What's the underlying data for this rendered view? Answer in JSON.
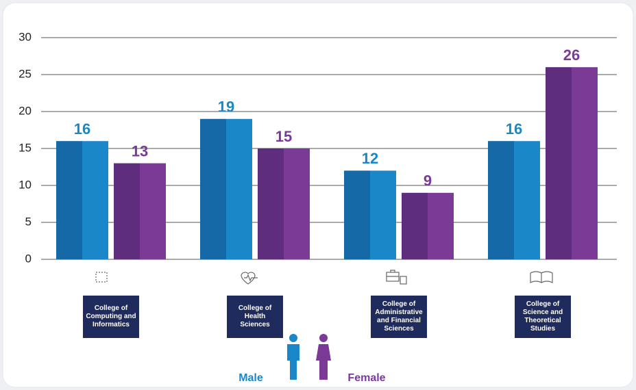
{
  "chart_data": {
    "type": "bar",
    "categories": [
      "College of Computing and Informatics",
      "College of Health Sciences",
      "College of Administrative and Financial Sciences",
      "College of Science and Theoretical Studies"
    ],
    "series": [
      {
        "name": "Male",
        "color": "#1a87c9",
        "values": [
          16,
          19,
          12,
          16
        ]
      },
      {
        "name": "Female",
        "color": "#7a3a96",
        "values": [
          13,
          15,
          9,
          26
        ]
      }
    ],
    "ylim": [
      0,
      30
    ],
    "yticks": [
      0,
      5,
      10,
      15,
      20,
      25,
      30
    ],
    "grid": true
  }
}
